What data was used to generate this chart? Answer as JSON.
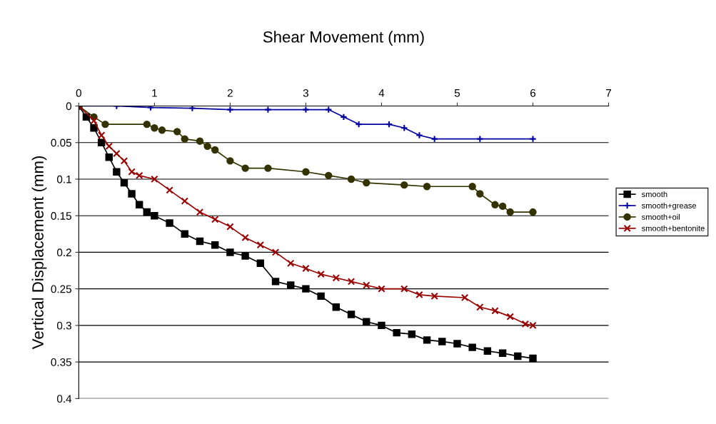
{
  "chart_data": {
    "type": "line",
    "title": "Shear Movement (mm)",
    "ylabel": "Vertical Displacement (mm)",
    "xlim": [
      0,
      7
    ],
    "xticks": [
      0,
      1,
      2,
      3,
      4,
      5,
      6,
      7
    ],
    "ylim": [
      0.4,
      0
    ],
    "yticks": [
      0,
      0.05,
      0.1,
      0.15,
      0.2,
      0.25,
      0.3,
      0.35,
      0.4
    ],
    "grid": "y",
    "legend": "right",
    "series": [
      {
        "name": "smooth",
        "color": "#000000",
        "marker": "square",
        "x": [
          0,
          0.1,
          0.2,
          0.3,
          0.4,
          0.5,
          0.6,
          0.7,
          0.8,
          0.9,
          1,
          1.2,
          1.4,
          1.6,
          1.8,
          2,
          2.2,
          2.4,
          2.6,
          2.8,
          3,
          3.2,
          3.4,
          3.6,
          3.8,
          4,
          4.2,
          4.4,
          4.6,
          4.8,
          5,
          5.2,
          5.4,
          5.6,
          5.8,
          6
        ],
        "values": [
          0,
          0.015,
          0.03,
          0.05,
          0.07,
          0.09,
          0.105,
          0.12,
          0.135,
          0.145,
          0.15,
          0.16,
          0.175,
          0.185,
          0.19,
          0.2,
          0.205,
          0.215,
          0.24,
          0.245,
          0.25,
          0.26,
          0.275,
          0.285,
          0.295,
          0.3,
          0.31,
          0.312,
          0.32,
          0.322,
          0.325,
          0.33,
          0.335,
          0.338,
          0.342,
          0.345
        ]
      },
      {
        "name": "smooth+grease",
        "color": "#0000a0",
        "marker": "cross",
        "x": [
          0,
          0.5,
          0.95,
          1.5,
          2,
          2.5,
          3,
          3.3,
          3.5,
          3.7,
          4.1,
          4.3,
          4.5,
          4.7,
          5.3,
          6
        ],
        "values": [
          0,
          0,
          0.002,
          0.003,
          0.005,
          0.005,
          0.005,
          0.005,
          0.015,
          0.025,
          0.025,
          0.03,
          0.04,
          0.045,
          0.045,
          0.045
        ]
      },
      {
        "name": "smooth+oil",
        "color": "#333300",
        "marker": "circle",
        "x": [
          0,
          0.2,
          0.35,
          0.9,
          1,
          1.1,
          1.3,
          1.4,
          1.6,
          1.7,
          1.8,
          2,
          2.2,
          2.5,
          3,
          3.3,
          3.6,
          3.8,
          4.3,
          4.6,
          5.2,
          5.3,
          5.5,
          5.6,
          5.7,
          6
        ],
        "values": [
          0,
          0.015,
          0.025,
          0.025,
          0.03,
          0.033,
          0.035,
          0.045,
          0.048,
          0.055,
          0.06,
          0.075,
          0.085,
          0.085,
          0.09,
          0.095,
          0.1,
          0.105,
          0.108,
          0.11,
          0.11,
          0.12,
          0.135,
          0.137,
          0.145,
          0.145
        ]
      },
      {
        "name": "smooth+bentonite",
        "color": "#990000",
        "marker": "x",
        "x": [
          0,
          0.2,
          0.3,
          0.4,
          0.5,
          0.6,
          0.7,
          0.8,
          1,
          1.2,
          1.4,
          1.6,
          1.8,
          2,
          2.2,
          2.4,
          2.6,
          2.8,
          3,
          3.2,
          3.4,
          3.6,
          3.8,
          4,
          4.3,
          4.5,
          4.7,
          5.1,
          5.3,
          5.5,
          5.7,
          5.9,
          6
        ],
        "values": [
          0,
          0.02,
          0.04,
          0.055,
          0.065,
          0.075,
          0.09,
          0.095,
          0.1,
          0.115,
          0.13,
          0.145,
          0.155,
          0.165,
          0.18,
          0.19,
          0.2,
          0.215,
          0.222,
          0.23,
          0.235,
          0.24,
          0.245,
          0.25,
          0.25,
          0.258,
          0.26,
          0.262,
          0.275,
          0.28,
          0.288,
          0.298,
          0.3
        ]
      }
    ]
  }
}
